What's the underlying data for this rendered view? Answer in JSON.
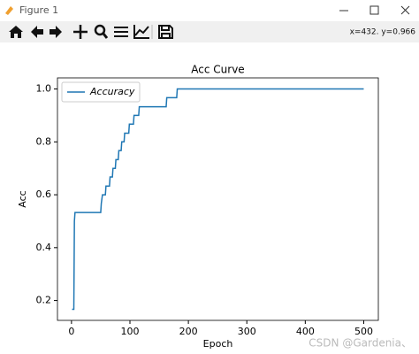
{
  "window": {
    "title": "Figure 1",
    "coords": "x=432. y=0.966"
  },
  "chart_data": {
    "type": "line",
    "title": "Acc Curve",
    "x_label": "Epoch",
    "y_label": "Acc",
    "x": [
      1,
      4,
      5,
      6,
      50,
      51,
      53,
      58,
      59,
      65,
      66,
      70,
      71,
      75,
      76,
      80,
      81,
      85,
      86,
      90,
      91,
      98,
      99,
      106,
      107,
      115,
      116,
      162,
      163,
      180,
      181,
      500
    ],
    "series": [
      {
        "name": "Accuracy",
        "color": "#1f77b4",
        "values": [
          0.167,
          0.167,
          0.5,
          0.533,
          0.533,
          0.567,
          0.6,
          0.6,
          0.633,
          0.633,
          0.667,
          0.667,
          0.7,
          0.7,
          0.733,
          0.733,
          0.767,
          0.767,
          0.8,
          0.8,
          0.833,
          0.833,
          0.867,
          0.867,
          0.9,
          0.9,
          0.933,
          0.933,
          0.967,
          0.967,
          1.0,
          1.0
        ]
      }
    ],
    "xlim": [
      -24,
      525
    ],
    "ylim": [
      0.125,
      1.042
    ],
    "xticks": [
      0,
      100,
      200,
      300,
      400,
      500
    ],
    "yticks": [
      0.2,
      0.4,
      0.6,
      0.8,
      {
        "value": 1,
        "label": "1.0"
      }
    ],
    "legend": "upper left"
  },
  "watermark": "CSDN @Gardenia、"
}
